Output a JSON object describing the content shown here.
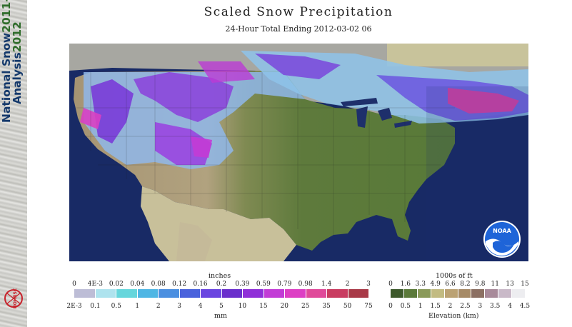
{
  "title": "Scaled Snow Precipitation",
  "subtitle": "24-Hour Total Ending 2012-03-02 06",
  "side_banner": {
    "line1": "National Snow",
    "line2": "Analysis",
    "year1": "2011-",
    "year2": "2012"
  },
  "precip_legend": {
    "top_unit": "inches",
    "bottom_unit": "mm",
    "top_ticks": [
      "0",
      "4E-3",
      "0.02",
      "0.04",
      "0.08",
      "0.12",
      "0.16",
      "0.2",
      "0.39",
      "0.59",
      "0.79",
      "0.98",
      "1.4",
      "2",
      "3"
    ],
    "bottom_ticks": [
      "2E-3",
      "0.1",
      "0.5",
      "1",
      "2",
      "3",
      "4",
      "5",
      "10",
      "15",
      "20",
      "25",
      "35",
      "50",
      "75"
    ],
    "colors": [
      "#bdbdd6",
      "#aee3ee",
      "#66d6dc",
      "#4fb6e4",
      "#4b8fe0",
      "#4a62dc",
      "#6a45e0",
      "#6a2fcc",
      "#8f2fd8",
      "#c23cd6",
      "#dd3fc4",
      "#e04a9a",
      "#c93c60",
      "#a93a48"
    ]
  },
  "elevation_legend": {
    "top_unit": "1000s of ft",
    "bottom_unit": "Elevation (km)",
    "top_ticks": [
      "0",
      "1.6",
      "3.3",
      "4.9",
      "6.6",
      "8.2",
      "9.8",
      "11",
      "13",
      "15"
    ],
    "bottom_ticks": [
      "0",
      "0.5",
      "1",
      "1.5",
      "2",
      "2.5",
      "3",
      "3.5",
      "4",
      "4.5"
    ],
    "colors": [
      "#3e5a2c",
      "#5b7a3a",
      "#8a9a5a",
      "#c2bb82",
      "#bba274",
      "#a68a66",
      "#8c7063",
      "#a88a9a",
      "#c9b9c8",
      "#ededf0"
    ]
  },
  "logos": {
    "nohrsc": "NOHRSC",
    "noaa": "NOAA"
  }
}
